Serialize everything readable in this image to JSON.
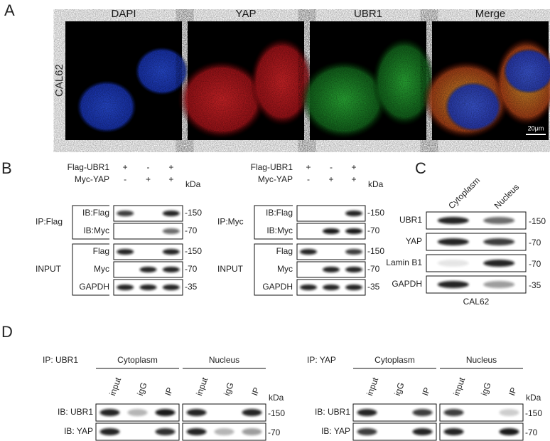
{
  "panel_a": {
    "label": "A",
    "channels": [
      "DAPI",
      "YAP",
      "UBR1",
      "Merge"
    ],
    "cell_line": "CAL62",
    "scale_bar": "20μm"
  },
  "panel_b": {
    "label": "B",
    "blots": [
      {
        "conditions": [
          {
            "name": "Flag-UBR1",
            "signs": [
              "+",
              "-",
              "+"
            ]
          },
          {
            "name": "Myc-YAP",
            "signs": [
              "-",
              "+",
              "+"
            ]
          }
        ],
        "unit": "kDa",
        "groups": [
          {
            "name": "IP:Flag",
            "rows": [
              {
                "name": "IB:Flag",
                "marker": "-150"
              },
              {
                "name": "IB:Myc",
                "marker": "-70"
              }
            ]
          },
          {
            "name": "INPUT",
            "rows": [
              {
                "name": "Flag",
                "marker": "-150"
              },
              {
                "name": "Myc",
                "marker": "-70"
              },
              {
                "name": "GAPDH",
                "marker": "-35"
              }
            ]
          }
        ]
      },
      {
        "conditions": [
          {
            "name": "Flag-UBR1",
            "signs": [
              "+",
              "-",
              "+"
            ]
          },
          {
            "name": "Myc-YAP",
            "signs": [
              "-",
              "+",
              "+"
            ]
          }
        ],
        "unit": "kDa",
        "groups": [
          {
            "name": "IP:Myc",
            "rows": [
              {
                "name": "IB:Flag",
                "marker": "-150"
              },
              {
                "name": "IB:Myc",
                "marker": "-70"
              }
            ]
          },
          {
            "name": "INPUT",
            "rows": [
              {
                "name": "Flag",
                "marker": "-150"
              },
              {
                "name": "Myc",
                "marker": "-70"
              },
              {
                "name": "GAPDH",
                "marker": "-35"
              }
            ]
          }
        ]
      }
    ]
  },
  "panel_c": {
    "label": "C",
    "columns": [
      "Cytoplasm",
      "Nucleus"
    ],
    "rows": [
      {
        "name": "UBR1",
        "marker": "-150"
      },
      {
        "name": "YAP",
        "marker": "-70"
      },
      {
        "name": "Lamin B1",
        "marker": "-70"
      },
      {
        "name": "GAPDH",
        "marker": "-35"
      }
    ],
    "cell_line": "CAL62"
  },
  "panel_d": {
    "label": "D",
    "blots": [
      {
        "ip": "IP: UBR1",
        "fractions": [
          "Cytoplasm",
          "Nucleus"
        ],
        "lanes": [
          "input",
          "igG",
          "IP",
          "input",
          "igG",
          "IP"
        ],
        "unit": "kDa",
        "rows": [
          {
            "name": "IB: UBR1",
            "marker": "-150"
          },
          {
            "name": "IB: YAP",
            "marker": "-70"
          }
        ]
      },
      {
        "ip": "IP: YAP",
        "fractions": [
          "Cytoplasm",
          "Nucleus"
        ],
        "lanes": [
          "input",
          "igG",
          "IP",
          "input",
          "igG",
          "IP"
        ],
        "unit": "kDa",
        "rows": [
          {
            "name": "IB: UBR1",
            "marker": "-150"
          },
          {
            "name": "IB: YAP",
            "marker": "-70"
          }
        ]
      }
    ]
  }
}
